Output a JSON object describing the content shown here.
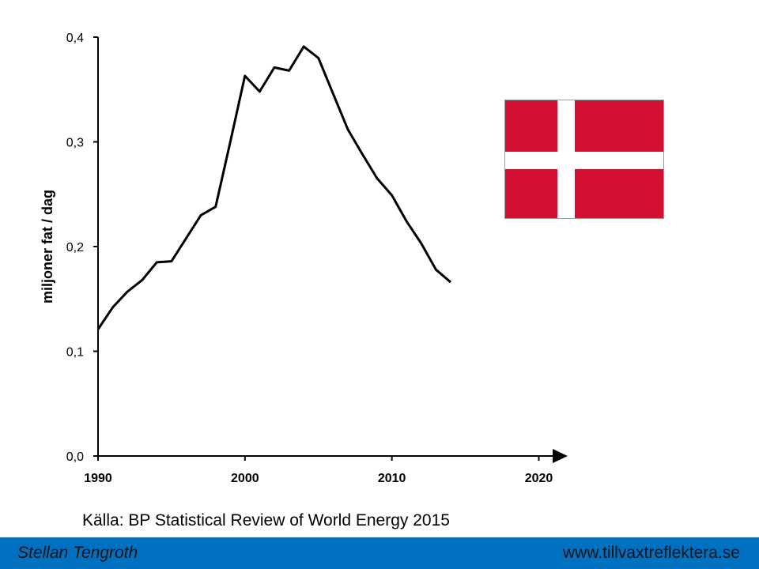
{
  "chart_data": {
    "type": "line",
    "title": "",
    "xlabel": "",
    "ylabel": "miljoner fat / dag",
    "xlim": [
      1990,
      2022
    ],
    "ylim": [
      0,
      0.4
    ],
    "x_ticks": [
      1990,
      2000,
      2010,
      2020
    ],
    "x_tick_labels": [
      "1990",
      "2000",
      "2010",
      "2020"
    ],
    "y_ticks": [
      0,
      0.1,
      0.2,
      0.3,
      0.4
    ],
    "y_tick_labels": [
      "0,0",
      "0,1",
      "0,2",
      "0,3",
      "0,4"
    ],
    "grid": false,
    "series": [
      {
        "x": [
          1990,
          1991,
          1992,
          1993,
          1994,
          1995,
          1996,
          1997,
          1998,
          1999,
          2000,
          2001,
          2002,
          2003,
          2004,
          2005,
          2006,
          2007,
          2008,
          2009,
          2010,
          2011,
          2012,
          2013,
          2014
        ],
        "y": [
          0.121,
          0.142,
          0.157,
          0.168,
          0.185,
          0.186,
          0.208,
          0.23,
          0.238,
          0.3,
          0.363,
          0.348,
          0.371,
          0.368,
          0.391,
          0.38,
          0.346,
          0.312,
          0.288,
          0.265,
          0.249,
          0.224,
          0.203,
          0.178,
          0.166
        ],
        "color": "#000000"
      }
    ]
  },
  "flag": {
    "country": "Denmark",
    "background_color": "#d21034",
    "cross_color": "#ffffff"
  },
  "source_text": "Källa: BP Statistical Review of World Energy 2015",
  "footer": {
    "author": "Stellan Tengroth",
    "url": "www.tillvaxtreflektera.se",
    "background_color": "#0070c0"
  }
}
